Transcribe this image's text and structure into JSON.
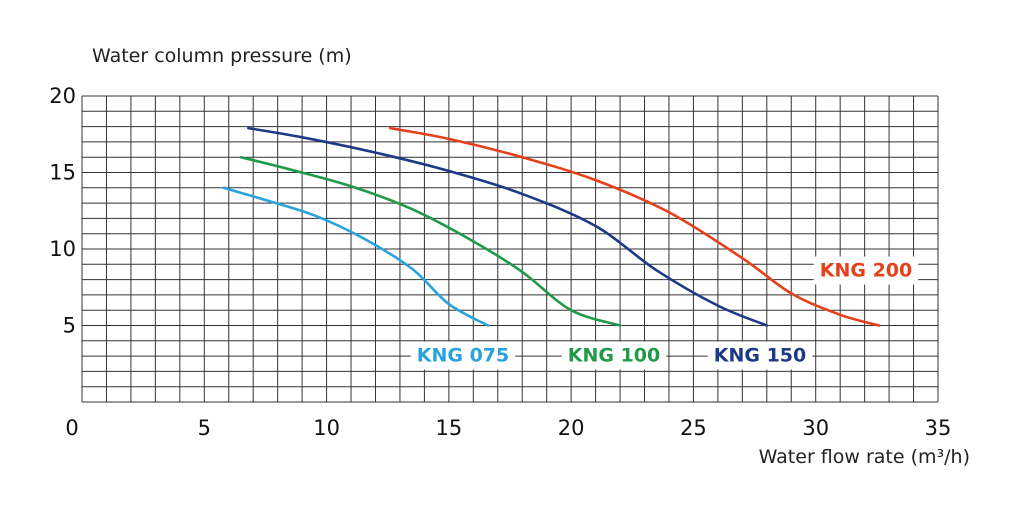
{
  "chart_data": {
    "type": "line",
    "ylabel": "Water column pressure (m)",
    "xlabel": "Water flow rate (m³/h)",
    "xlim": [
      0,
      35
    ],
    "ylim": [
      0,
      20
    ],
    "x_ticks": [
      "0",
      "5",
      "10",
      "15",
      "20",
      "25",
      "30",
      "35"
    ],
    "y_ticks": [
      "5",
      "10",
      "15",
      "20"
    ],
    "grid": true,
    "series": [
      {
        "name": "KNG 075",
        "color": "#29a3dc",
        "x": [
          5.8,
          7.5,
          9.5,
          11.5,
          13.5,
          15,
          16.6
        ],
        "y": [
          14,
          13.2,
          12.2,
          10.7,
          8.7,
          6.4,
          5
        ]
      },
      {
        "name": "KNG 100",
        "color": "#1f9a48",
        "x": [
          6.5,
          8.5,
          11,
          13.5,
          16,
          18,
          20,
          22
        ],
        "y": [
          16,
          15.2,
          14.1,
          12.6,
          10.5,
          8.5,
          6,
          5
        ]
      },
      {
        "name": "KNG 150",
        "color": "#1c3a87",
        "x": [
          6.8,
          9,
          12,
          15,
          18,
          21,
          23.5,
          26,
          28
        ],
        "y": [
          17.9,
          17.3,
          16.3,
          15.1,
          13.6,
          11.5,
          8.6,
          6.3,
          5
        ]
      },
      {
        "name": "KNG 200",
        "color": "#e4401c",
        "x": [
          12.6,
          15,
          18,
          21,
          24,
          27,
          29,
          31,
          32.6
        ],
        "y": [
          17.9,
          17.2,
          16,
          14.5,
          12.4,
          9.4,
          7.1,
          5.7,
          5
        ]
      }
    ]
  }
}
